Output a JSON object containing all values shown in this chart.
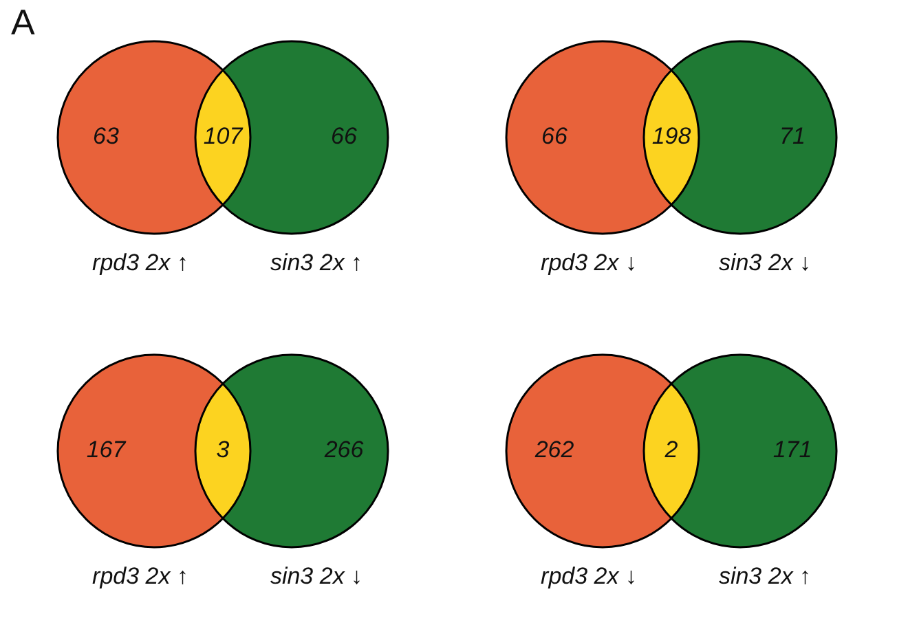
{
  "chart_data": [
    {
      "type": "other",
      "data_labels": true,
      "annotations": [
        "A"
      ],
      "categories": [
        "rpd3 2x ↑",
        null,
        "sin3 2x ↑"
      ],
      "values": [
        63,
        107,
        66
      ],
      "colors": [
        "#e8623a",
        "#fcd320",
        "#1f7a34"
      ]
    },
    {
      "type": "other",
      "data_labels": true,
      "categories": [
        "rpd3 2x ↓",
        null,
        "sin3 2x ↓"
      ],
      "values": [
        66,
        198,
        71
      ],
      "colors": [
        "#e8623a",
        "#fcd320",
        "#1f7a34"
      ]
    },
    {
      "type": "other",
      "data_labels": true,
      "categories": [
        "rpd3 2x ↑",
        null,
        "sin3 2x ↓"
      ],
      "values": [
        167,
        3,
        266
      ],
      "colors": [
        "#e8623a",
        "#fcd320",
        "#1f7a34"
      ]
    },
    {
      "type": "other",
      "data_labels": true,
      "categories": [
        "rpd3 2x ↓",
        null,
        "sin3 2x ↑"
      ],
      "values": [
        262,
        2,
        171
      ],
      "colors": [
        "#e8623a",
        "#fcd320",
        "#1f7a34"
      ]
    }
  ]
}
